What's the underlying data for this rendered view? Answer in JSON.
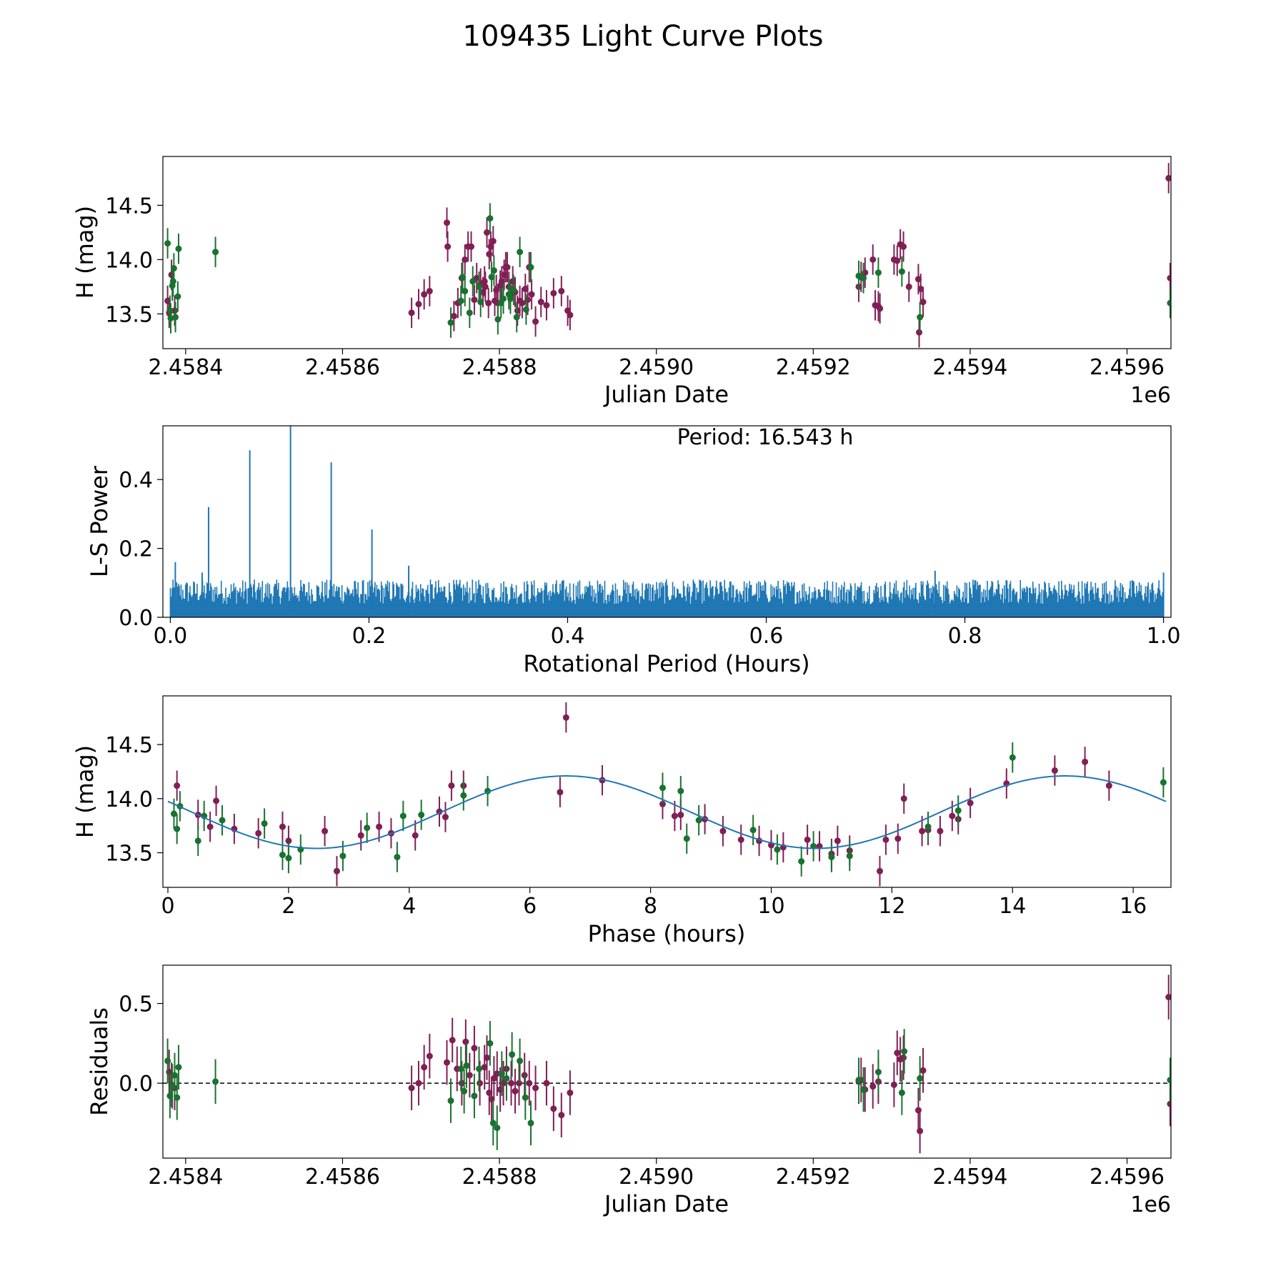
{
  "figure_title": "109435 Light Curve Plots",
  "colors": {
    "series_a": "#801f55",
    "series_b": "#19722f",
    "curve": "#1f77b4",
    "axis": "#000000"
  },
  "chart_data": [
    {
      "type": "scatter",
      "name": "light-curve",
      "title": "",
      "xlabel": "Julian Date",
      "ylabel": "H (mag)",
      "x_offset_label": "1e6",
      "xlim": [
        2.458371,
        2.459656
      ],
      "ylim": [
        13.18,
        14.95
      ],
      "x_ticks": [
        2.4584,
        2.4586,
        2.4588,
        2.459,
        2.4592,
        2.4594,
        2.4596
      ],
      "x_tick_labels": [
        "2.4584",
        "2.4586",
        "2.4588",
        "2.4590",
        "2.4592",
        "2.4594",
        "2.4596"
      ],
      "y_ticks": [
        13.5,
        14.0,
        14.5
      ],
      "y_tick_labels": [
        "13.5",
        "14.0",
        "14.5"
      ],
      "series": [
        {
          "name": "magenta",
          "color": "#801f55",
          "err": 0.14,
          "x": [
            2.458377,
            2.458379,
            2.458382,
            2.458386,
            2.458688,
            2.458697,
            2.458704,
            2.458711,
            2.458733,
            2.458734,
            2.458742,
            2.458747,
            2.458752,
            2.458756,
            2.45876,
            2.458764,
            2.458768,
            2.458771,
            2.458776,
            2.458779,
            2.458781,
            2.458782,
            2.458784,
            2.458786,
            2.458787,
            2.458789,
            2.458792,
            2.458794,
            2.458796,
            2.458798,
            2.458801,
            2.458803,
            2.458806,
            2.458808,
            2.45881,
            2.458812,
            2.458814,
            2.458817,
            2.45882,
            2.458823,
            2.458826,
            2.458829,
            2.458833,
            2.458836,
            2.458838,
            2.458841,
            2.458846,
            2.458853,
            2.45886,
            2.458869,
            2.458879,
            2.458887,
            2.45889,
            2.459258,
            2.459261,
            2.459266,
            2.459276,
            2.459279,
            2.459283,
            2.459285,
            2.459303,
            2.459307,
            2.459311,
            2.459315,
            2.459322,
            2.459334,
            2.459335,
            2.459337,
            2.45934,
            2.459653,
            2.459655
          ],
          "y": [
            13.62,
            13.51,
            13.86,
            13.53,
            13.51,
            13.59,
            13.68,
            13.71,
            14.34,
            14.12,
            13.48,
            13.6,
            13.83,
            14.0,
            14.12,
            14.12,
            13.63,
            13.83,
            13.78,
            13.7,
            13.8,
            13.75,
            14.25,
            13.6,
            14.05,
            14.12,
            14.17,
            13.62,
            13.72,
            13.6,
            13.76,
            13.8,
            13.86,
            13.93,
            13.93,
            13.75,
            13.68,
            13.8,
            13.7,
            13.53,
            13.62,
            13.6,
            13.73,
            13.63,
            13.93,
            13.68,
            13.43,
            13.61,
            13.58,
            13.69,
            13.71,
            13.53,
            13.49,
            13.75,
            13.84,
            13.88,
            14.0,
            13.58,
            13.57,
            13.55,
            14.0,
            13.99,
            14.14,
            14.12,
            13.75,
            13.82,
            13.33,
            13.73,
            13.61,
            14.75,
            13.83
          ]
        },
        {
          "name": "green",
          "color": "#19722f",
          "err": 0.14,
          "x": [
            2.458377,
            2.45838,
            2.458381,
            2.458383,
            2.458384,
            2.458385,
            2.458387,
            2.45839,
            2.458391,
            2.458438,
            2.458738,
            2.458751,
            2.458753,
            2.458756,
            2.458762,
            2.458766,
            2.458774,
            2.458776,
            2.458788,
            2.45879,
            2.458793,
            2.458798,
            2.458802,
            2.458805,
            2.458812,
            2.458814,
            2.458818,
            2.458822,
            2.458826,
            2.458834,
            2.45884,
            2.459258,
            2.459264,
            2.459283,
            2.459313,
            2.459336,
            2.459655
          ],
          "y": [
            14.15,
            13.53,
            13.46,
            13.76,
            13.8,
            13.92,
            13.47,
            13.66,
            14.1,
            14.07,
            13.42,
            13.62,
            13.84,
            13.71,
            13.51,
            13.8,
            13.75,
            13.61,
            14.38,
            13.84,
            13.9,
            13.45,
            13.6,
            13.64,
            13.68,
            13.64,
            13.72,
            13.47,
            14.07,
            13.54,
            13.93,
            13.85,
            13.83,
            13.88,
            13.89,
            13.47,
            13.6
          ]
        }
      ]
    },
    {
      "type": "line",
      "name": "periodogram",
      "title": "",
      "xlabel": "Rotational Period (Hours)",
      "ylabel": "L-S Power",
      "annotation": "Period: 16.543 h",
      "xlim": [
        -0.0075,
        1.0075
      ],
      "ylim": [
        0,
        0.556
      ],
      "x_ticks": [
        0.0,
        0.2,
        0.4,
        0.6,
        0.8,
        1.0
      ],
      "x_tick_labels": [
        "0.0",
        "0.2",
        "0.4",
        "0.6",
        "0.8",
        "1.0"
      ],
      "y_ticks": [
        0.0,
        0.2,
        0.4
      ],
      "y_tick_labels": [
        "0.0",
        "0.2",
        "0.4"
      ],
      "color": "#1f77b4",
      "baseline_range": [
        0.0,
        0.11
      ],
      "peaks": [
        {
          "x": 0.005,
          "y": 0.16
        },
        {
          "x": 0.0385,
          "y": 0.32
        },
        {
          "x": 0.08,
          "y": 0.485
        },
        {
          "x": 0.121,
          "y": 0.556
        },
        {
          "x": 0.162,
          "y": 0.45
        },
        {
          "x": 0.203,
          "y": 0.255
        },
        {
          "x": 0.032,
          "y": 0.13
        },
        {
          "x": 0.24,
          "y": 0.15
        },
        {
          "x": 0.77,
          "y": 0.135
        },
        {
          "x": 1.0,
          "y": 0.13
        }
      ]
    },
    {
      "type": "scatter",
      "name": "phased-curve",
      "title": "",
      "xlabel": "Phase (hours)",
      "ylabel": "H (mag)",
      "xlim": [
        -0.083,
        16.626
      ],
      "ylim": [
        13.18,
        14.95
      ],
      "x_ticks": [
        0,
        2,
        4,
        6,
        8,
        10,
        12,
        14,
        16
      ],
      "x_tick_labels": [
        "0",
        "2",
        "4",
        "6",
        "8",
        "10",
        "12",
        "14",
        "16"
      ],
      "y_ticks": [
        13.5,
        14.0,
        14.5
      ],
      "y_tick_labels": [
        "13.5",
        "14.0",
        "14.5"
      ],
      "fit": {
        "mean": 13.875,
        "amplitude": 0.335,
        "period": 8.27,
        "peak_phase": 6.6,
        "x_range": [
          0,
          16.543
        ]
      },
      "series": [
        {
          "name": "magenta",
          "color": "#801f55",
          "err": 0.14,
          "x": [
            0.15,
            0.5,
            0.7,
            0.8,
            1.1,
            1.5,
            1.9,
            2.0,
            2.6,
            2.8,
            3.2,
            3.5,
            3.7,
            4.1,
            4.5,
            4.6,
            4.7,
            4.9,
            6.5,
            6.6,
            7.2,
            8.2,
            8.4,
            8.5,
            8.9,
            9.2,
            9.5,
            9.8,
            10.0,
            10.2,
            10.6,
            10.8,
            11.0,
            11.1,
            11.3,
            11.8,
            11.9,
            12.1,
            12.2,
            12.5,
            12.6,
            12.8,
            13.0,
            13.1,
            13.3,
            13.9,
            14.7,
            15.2,
            15.6
          ],
          "y": [
            14.12,
            13.85,
            13.74,
            13.98,
            13.72,
            13.68,
            13.74,
            13.61,
            13.7,
            13.33,
            13.66,
            13.74,
            13.68,
            13.66,
            13.88,
            13.83,
            14.12,
            14.12,
            14.06,
            14.75,
            14.17,
            13.95,
            13.84,
            13.85,
            13.81,
            13.7,
            13.62,
            13.61,
            13.57,
            13.55,
            13.62,
            13.56,
            13.49,
            13.61,
            13.52,
            13.33,
            13.62,
            13.63,
            14.0,
            13.7,
            13.71,
            13.7,
            13.84,
            13.81,
            13.96,
            14.14,
            14.26,
            14.34,
            14.12
          ],
          "bind_note": ""
        },
        {
          "name": "green",
          "color": "#19722f",
          "err": 0.14,
          "x": [
            0.1,
            0.15,
            0.2,
            0.5,
            0.6,
            0.9,
            1.6,
            1.9,
            2.0,
            2.2,
            2.9,
            3.3,
            3.8,
            3.9,
            4.2,
            4.9,
            5.3,
            8.2,
            8.5,
            8.6,
            8.8,
            9.7,
            10.1,
            10.5,
            10.7,
            11.0,
            11.3,
            12.6,
            13.1,
            14.0,
            16.5
          ],
          "y": [
            13.86,
            13.72,
            13.93,
            13.61,
            13.84,
            13.8,
            13.77,
            13.48,
            13.45,
            13.53,
            13.47,
            13.73,
            13.46,
            13.84,
            13.85,
            14.03,
            14.07,
            14.1,
            14.07,
            13.63,
            13.8,
            13.71,
            13.53,
            13.42,
            13.56,
            13.46,
            13.47,
            13.74,
            13.89,
            14.38,
            14.15
          ]
        }
      ]
    },
    {
      "type": "scatter",
      "name": "residuals",
      "title": "",
      "xlabel": "Julian Date",
      "ylabel": "Residuals",
      "x_offset_label": "1e6",
      "xlim": [
        2.458371,
        2.459656
      ],
      "ylim": [
        -0.47,
        0.74
      ],
      "x_ticks": [
        2.4584,
        2.4586,
        2.4588,
        2.459,
        2.4592,
        2.4594,
        2.4596
      ],
      "x_tick_labels": [
        "2.4584",
        "2.4586",
        "2.4588",
        "2.4590",
        "2.4592",
        "2.4594",
        "2.4596"
      ],
      "y_ticks": [
        0.0,
        0.5
      ],
      "y_tick_labels": [
        "0.0",
        "0.5"
      ],
      "reference_line": 0.0,
      "series": [
        {
          "name": "magenta",
          "color": "#801f55",
          "err": 0.14,
          "x": [
            2.458379,
            2.458382,
            2.458386,
            2.458688,
            2.458697,
            2.458704,
            2.458711,
            2.458733,
            2.45874,
            2.458746,
            2.458752,
            2.458757,
            2.458762,
            2.458768,
            2.458775,
            2.458781,
            2.458784,
            2.458787,
            2.45879,
            2.458793,
            2.458797,
            2.458801,
            2.458805,
            2.458809,
            2.458815,
            2.45882,
            2.458825,
            2.458832,
            2.458838,
            2.458846,
            2.45886,
            2.458869,
            2.458879,
            2.45889,
            2.459258,
            2.459261,
            2.459266,
            2.459276,
            2.459283,
            2.459303,
            2.459307,
            2.459311,
            2.459315,
            2.459334,
            2.459336,
            2.45934,
            2.459653,
            2.459655
          ],
          "y": [
            0.07,
            -0.01,
            -0.03,
            -0.03,
            0.0,
            0.1,
            0.17,
            0.13,
            0.27,
            0.09,
            0.0,
            0.26,
            0.05,
            0.22,
            0.0,
            0.1,
            0.16,
            -0.06,
            -0.1,
            0.03,
            0.06,
            -0.04,
            0.0,
            0.09,
            0.0,
            -0.05,
            0.0,
            0.05,
            0.0,
            -0.03,
            0.0,
            -0.16,
            -0.2,
            -0.06,
            0.01,
            0.02,
            -0.04,
            -0.02,
            0.01,
            -0.01,
            0.19,
            0.15,
            0.16,
            -0.17,
            -0.3,
            0.08,
            0.54,
            -0.13
          ],
          "bind_note": ""
        },
        {
          "name": "green",
          "color": "#19722f",
          "err": 0.14,
          "x": [
            2.458377,
            2.45838,
            2.458383,
            2.458386,
            2.458389,
            2.458391,
            2.458438,
            2.458738,
            2.458751,
            2.458755,
            2.458758,
            2.458768,
            2.458774,
            2.458788,
            2.458792,
            2.458797,
            2.458803,
            2.458809,
            2.458816,
            2.458826,
            2.458833,
            2.45884,
            2.459258,
            2.459264,
            2.459283,
            2.459313,
            2.459316,
            2.459336,
            2.459655
          ],
          "y": [
            0.14,
            -0.08,
            -0.02,
            0.05,
            -0.09,
            0.1,
            0.01,
            -0.11,
            0.09,
            -0.05,
            0.11,
            -0.08,
            0.09,
            0.25,
            -0.25,
            -0.28,
            0.06,
            0.03,
            0.18,
            0.14,
            -0.09,
            -0.25,
            0.02,
            -0.04,
            0.07,
            -0.06,
            0.2,
            0.03,
            0.02
          ]
        }
      ]
    }
  ]
}
